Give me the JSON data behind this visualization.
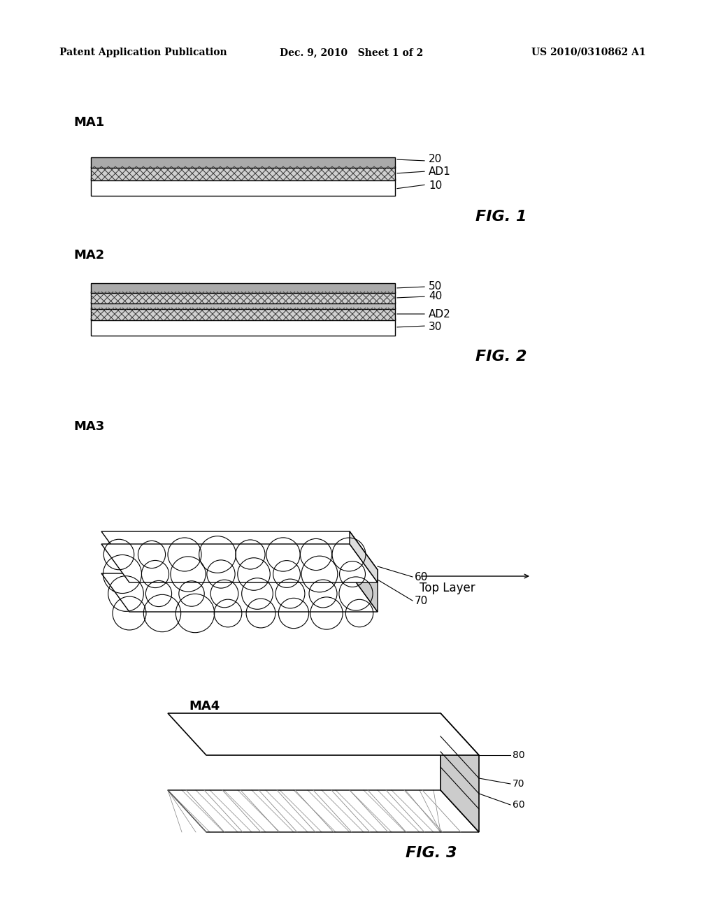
{
  "bg_color": "#ffffff",
  "text_color": "#000000",
  "header_left": "Patent Application Publication",
  "header_center": "Dec. 9, 2010   Sheet 1 of 2",
  "header_right": "US 2010/0310862 A1",
  "fig1_label": "MA1",
  "fig2_label": "MA2",
  "fig3_label": "FIG. 1",
  "fig4_label": "FIG. 2",
  "fig5_label": "FIG. 3",
  "ma3_label": "MA3",
  "ma4_label": "MA4",
  "top_layer_label": "Top Layer"
}
